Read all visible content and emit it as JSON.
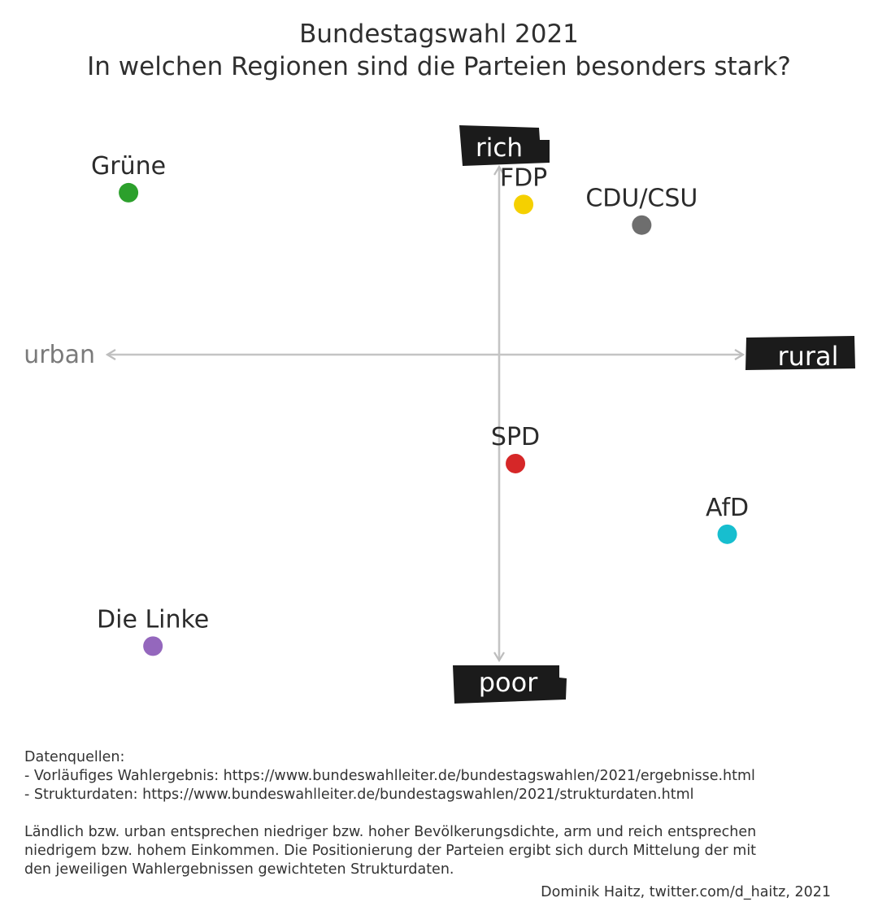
{
  "title": {
    "line1": "Bundestagswahl 2021",
    "line2": "In welchen Regionen sind die Parteien besonders stark?"
  },
  "chart_data": {
    "type": "scatter",
    "title": "Bundestagswahl 2021 In welchen Regionen sind die Parteien besonders stark?",
    "x_axis": {
      "negative_label": "urban",
      "positive_label": "rural"
    },
    "y_axis": {
      "negative_label": "poor",
      "positive_label": "rich"
    },
    "xlim": [
      -1,
      1
    ],
    "ylim": [
      -1,
      1
    ],
    "grid": false,
    "points": [
      {
        "label": "Grüne",
        "x": -0.91,
        "y": 0.55,
        "color": "#2ca02c"
      },
      {
        "label": "FDP",
        "x": 0.06,
        "y": 0.51,
        "color": "#f5d000"
      },
      {
        "label": "CDU/CSU",
        "x": 0.35,
        "y": 0.44,
        "color": "#6e6e6e"
      },
      {
        "label": "SPD",
        "x": 0.04,
        "y": -0.37,
        "color": "#d62728"
      },
      {
        "label": "AfD",
        "x": 0.56,
        "y": -0.61,
        "color": "#17becf"
      },
      {
        "label": "Die Linke",
        "x": -0.85,
        "y": -0.99,
        "color": "#9467bd"
      }
    ]
  },
  "footer": {
    "sources_heading": "Datenquellen:",
    "source1": "- Vorläufiges Wahlergebnis: https://www.bundeswahlleiter.de/bundestagswahlen/2021/ergebnisse.html",
    "source2": "- Strukturdaten: https://www.bundeswahlleiter.de/bundestagswahlen/2021/strukturdaten.html",
    "note1": "Ländlich bzw. urban entsprechen niedriger bzw. hoher Bevölkerungsdichte, arm und reich entsprechen",
    "note2": "niedrigem bzw. hohem Einkommen. Die Positionierung der Parteien ergibt sich durch Mittelung der mit",
    "note3": "den jeweiligen Wahlergebnissen gewichteten Strukturdaten.",
    "credit": "Dominik Haitz, twitter.com/d_haitz, 2021"
  }
}
